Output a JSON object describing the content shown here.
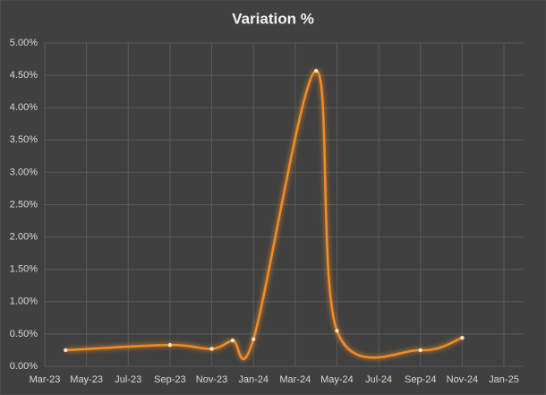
{
  "chart_data": {
    "type": "line",
    "title": "Variation %",
    "x": [
      "2023-04",
      "2023-09",
      "2023-11",
      "2023-12",
      "2024-01",
      "2024-04",
      "2024-05",
      "2024-09",
      "2024-11"
    ],
    "values": [
      0.25,
      0.33,
      0.27,
      0.4,
      0.42,
      4.57,
      0.55,
      0.25,
      0.44
    ],
    "color": "#f28c28",
    "xlim": [
      "2023-03",
      "2025-01"
    ],
    "xticks": [
      {
        "value": "2023-03",
        "label": "Mar-23"
      },
      {
        "value": "2023-05",
        "label": "May-23"
      },
      {
        "value": "2023-07",
        "label": "Jul-23"
      },
      {
        "value": "2023-09",
        "label": "Sep-23"
      },
      {
        "value": "2023-11",
        "label": "Nov-23"
      },
      {
        "value": "2024-01",
        "label": "Jan-24"
      },
      {
        "value": "2024-03",
        "label": "Mar-24"
      },
      {
        "value": "2024-05",
        "label": "May-24"
      },
      {
        "value": "2024-07",
        "label": "Jul-24"
      },
      {
        "value": "2024-09",
        "label": "Sep-24"
      },
      {
        "value": "2024-11",
        "label": "Nov-24"
      },
      {
        "value": "2025-01",
        "label": "Jan-25"
      }
    ],
    "ylim": [
      0,
      5
    ],
    "yticks": [
      {
        "value": 0,
        "label": "0.00%"
      },
      {
        "value": 0.5,
        "label": "0.50%"
      },
      {
        "value": 1,
        "label": "1.00%"
      },
      {
        "value": 1.5,
        "label": "1.50%"
      },
      {
        "value": 2,
        "label": "2.00%"
      },
      {
        "value": 2.5,
        "label": "2.50%"
      },
      {
        "value": 3,
        "label": "3.00%"
      },
      {
        "value": 3.5,
        "label": "3.50%"
      },
      {
        "value": 4,
        "label": "4.00%"
      },
      {
        "value": 4.5,
        "label": "4.50%"
      },
      {
        "value": 5,
        "label": "5.00%"
      }
    ],
    "grid": true,
    "smooth": true
  }
}
